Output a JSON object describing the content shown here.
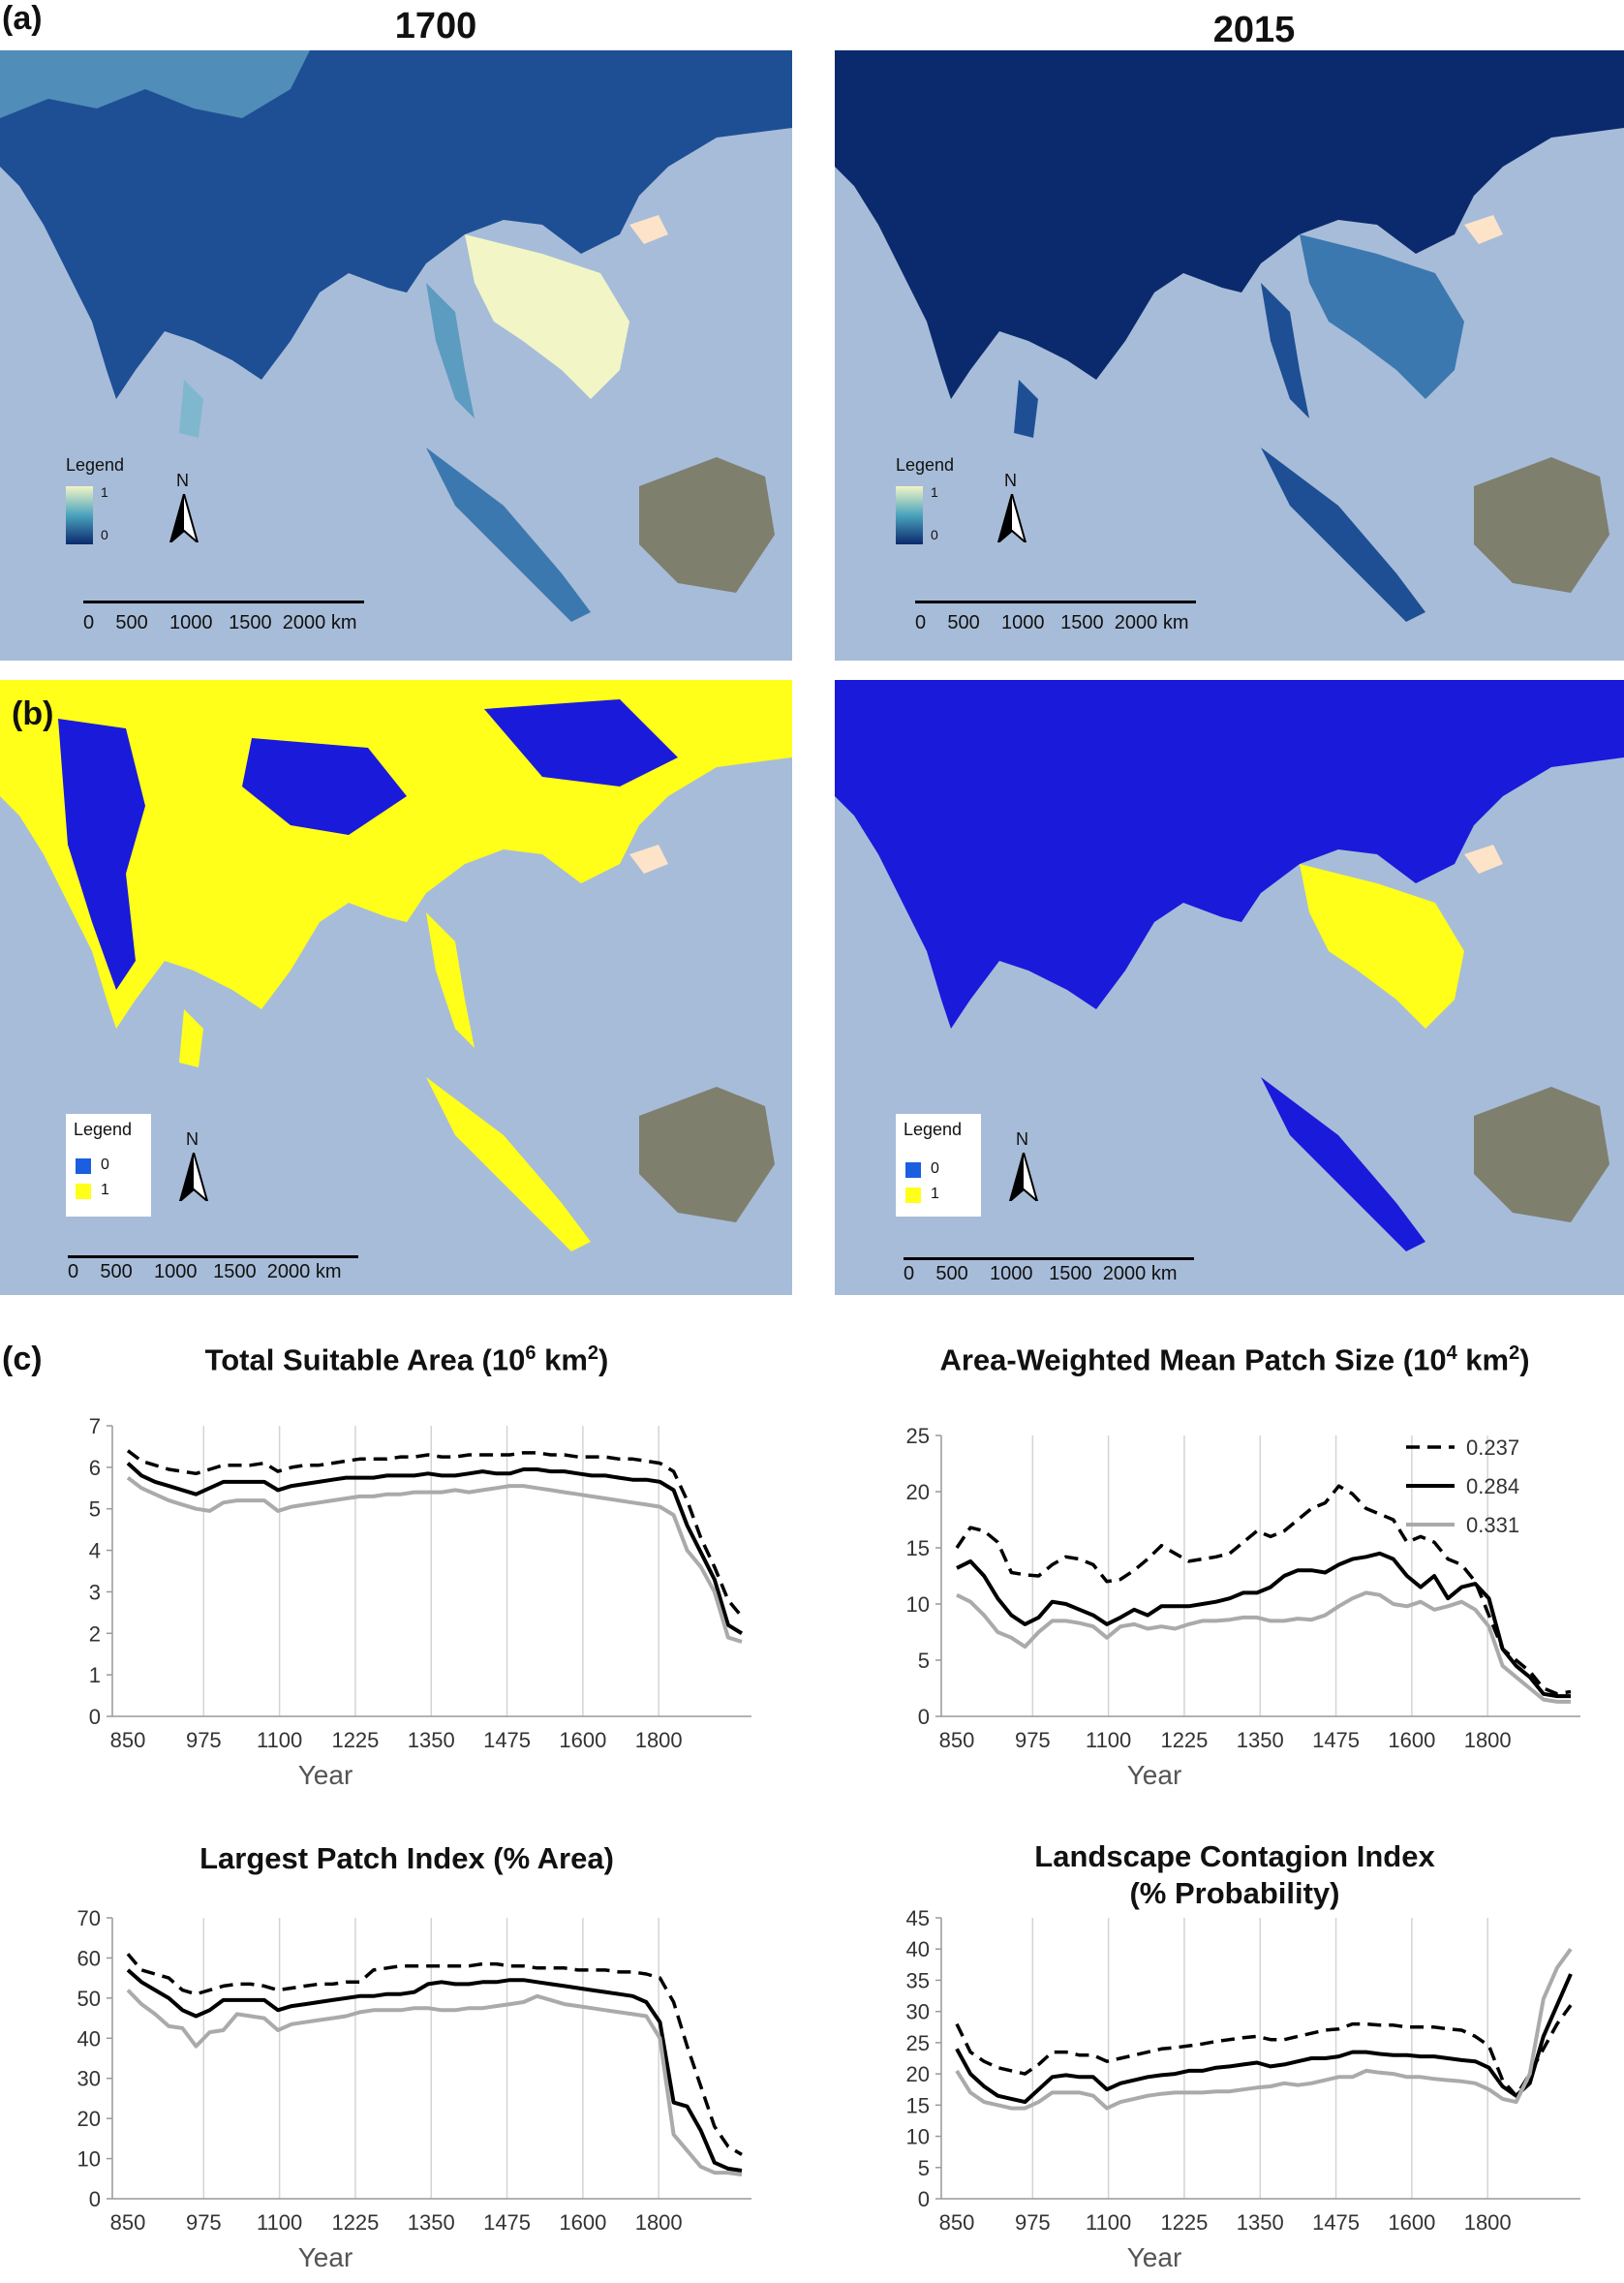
{
  "panels": {
    "a": {
      "label": "(a)"
    },
    "b": {
      "label": "(b)"
    },
    "c": {
      "label": "(c)"
    }
  },
  "maps": {
    "year_left": "1700",
    "year_right": "2015",
    "legend_title": "Legend",
    "continuous_legend": {
      "high": "1",
      "low": "0"
    },
    "binary_legend": {
      "zero": "0",
      "one": "1"
    },
    "north": "N",
    "scale_labels": [
      "0",
      "500",
      "1000",
      "1500",
      "2000 km"
    ],
    "colors": {
      "ocean": "#a7bcd8",
      "land_outside": "#fde3c8",
      "blue_dark": "#0b2a6e",
      "blue_binary": "#1a1adb",
      "yellow": "#ffff1a",
      "highlight": "#f2f5c6",
      "borneo": "#7f7f6e"
    }
  },
  "chart_data": [
    {
      "type": "line",
      "title_main": "Total Suitable Area (10",
      "title_sup": "6",
      "title_tail": " km",
      "title_sup2": "2",
      "title_end": ")",
      "xlabel": "Year",
      "x_ticks": [
        "850",
        "975",
        "1100",
        "1225",
        "1350",
        "1475",
        "1600",
        "1800"
      ],
      "y_ticks": [
        "0",
        "1",
        "2",
        "3",
        "4",
        "5",
        "6",
        "7"
      ],
      "ylim": [
        0,
        7
      ],
      "series": [
        {
          "style": "dashed",
          "values": [
            6.4,
            6.15,
            6.05,
            5.95,
            5.9,
            5.85,
            5.95,
            6.05,
            6.05,
            6.05,
            6.1,
            5.9,
            6.0,
            6.05,
            6.05,
            6.1,
            6.15,
            6.2,
            6.2,
            6.2,
            6.25,
            6.25,
            6.3,
            6.25,
            6.25,
            6.3,
            6.3,
            6.3,
            6.3,
            6.35,
            6.35,
            6.3,
            6.3,
            6.25,
            6.25,
            6.25,
            6.2,
            6.2,
            6.15,
            6.1,
            5.9,
            5.2,
            4.3,
            3.6,
            2.8,
            2.4
          ]
        },
        {
          "style": "solid",
          "values": [
            6.1,
            5.8,
            5.65,
            5.55,
            5.45,
            5.35,
            5.5,
            5.65,
            5.65,
            5.65,
            5.65,
            5.45,
            5.55,
            5.6,
            5.65,
            5.7,
            5.75,
            5.75,
            5.75,
            5.8,
            5.8,
            5.8,
            5.85,
            5.8,
            5.8,
            5.85,
            5.9,
            5.85,
            5.85,
            5.95,
            5.95,
            5.9,
            5.9,
            5.85,
            5.8,
            5.8,
            5.75,
            5.7,
            5.7,
            5.65,
            5.45,
            4.6,
            3.95,
            3.3,
            2.2,
            2.0
          ]
        },
        {
          "style": "gray",
          "values": [
            5.75,
            5.5,
            5.35,
            5.2,
            5.1,
            5.0,
            4.95,
            5.15,
            5.2,
            5.2,
            5.2,
            4.95,
            5.05,
            5.1,
            5.15,
            5.2,
            5.25,
            5.3,
            5.3,
            5.35,
            5.35,
            5.4,
            5.4,
            5.4,
            5.45,
            5.4,
            5.45,
            5.5,
            5.55,
            5.55,
            5.5,
            5.45,
            5.4,
            5.35,
            5.3,
            5.25,
            5.2,
            5.15,
            5.1,
            5.05,
            4.85,
            4.0,
            3.6,
            3.0,
            1.9,
            1.8
          ]
        }
      ]
    },
    {
      "type": "line",
      "title_main": "Area-Weighted Mean Patch Size (10",
      "title_sup": "4",
      "title_tail": " km",
      "title_sup2": "2",
      "title_end": ")",
      "xlabel": "Year",
      "x_ticks": [
        "850",
        "975",
        "1100",
        "1225",
        "1350",
        "1475",
        "1600",
        "1800"
      ],
      "y_ticks": [
        "0",
        "5",
        "10",
        "15",
        "20",
        "25"
      ],
      "ylim": [
        0,
        25
      ],
      "legend": [
        "0.237",
        "0.284",
        "0.331"
      ],
      "series": [
        {
          "style": "dashed",
          "values": [
            15,
            16.8,
            16.5,
            15.5,
            12.8,
            12.6,
            12.5,
            13.5,
            14.2,
            14.0,
            13.5,
            12.0,
            12.2,
            13.0,
            14.0,
            15.2,
            14.5,
            13.8,
            14.0,
            14.2,
            14.5,
            15.5,
            16.5,
            16.0,
            16.5,
            17.5,
            18.5,
            19.0,
            20.5,
            19.8,
            18.5,
            18.0,
            17.5,
            15.5,
            16.0,
            15.5,
            14.0,
            13.5,
            12.0,
            9.0,
            6.0,
            5.0,
            4.0,
            2.5,
            2.0,
            2.2
          ]
        },
        {
          "style": "solid",
          "values": [
            13.2,
            13.8,
            12.5,
            10.5,
            9.0,
            8.2,
            8.8,
            10.2,
            10.0,
            9.5,
            9.0,
            8.2,
            8.8,
            9.5,
            9.0,
            9.8,
            9.8,
            9.8,
            10.0,
            10.2,
            10.5,
            11.0,
            11.0,
            11.5,
            12.5,
            13.0,
            13.0,
            12.8,
            13.5,
            14.0,
            14.2,
            14.5,
            14.0,
            12.5,
            11.5,
            12.5,
            10.5,
            11.5,
            11.8,
            10.5,
            6.0,
            4.5,
            3.5,
            2.0,
            1.8,
            1.8
          ]
        },
        {
          "style": "gray",
          "values": [
            10.8,
            10.2,
            9.0,
            7.5,
            7.0,
            6.2,
            7.5,
            8.5,
            8.5,
            8.3,
            8.0,
            7.0,
            8.0,
            8.2,
            7.8,
            8.0,
            7.8,
            8.2,
            8.5,
            8.5,
            8.6,
            8.8,
            8.8,
            8.5,
            8.5,
            8.7,
            8.6,
            9.0,
            9.8,
            10.5,
            11.0,
            10.8,
            10.0,
            9.8,
            10.2,
            9.5,
            9.8,
            10.2,
            9.5,
            8.0,
            4.5,
            3.5,
            2.5,
            1.5,
            1.3,
            1.3
          ]
        }
      ]
    },
    {
      "type": "line",
      "title_main": "Largest Patch Index (% Area)",
      "xlabel": "Year",
      "x_ticks": [
        "850",
        "975",
        "1100",
        "1225",
        "1350",
        "1475",
        "1600",
        "1800"
      ],
      "y_ticks": [
        "0",
        "10",
        "20",
        "30",
        "40",
        "50",
        "60",
        "70"
      ],
      "ylim": [
        0,
        70
      ],
      "series": [
        {
          "style": "dashed",
          "values": [
            61,
            57,
            56,
            55,
            52,
            51,
            52,
            53,
            53.5,
            53.5,
            53,
            52,
            52.5,
            53,
            53.5,
            53.5,
            54,
            54,
            57,
            57.5,
            58,
            58,
            58,
            58,
            58,
            58,
            58.5,
            58.5,
            58,
            58,
            57.5,
            57.5,
            57.5,
            57,
            57,
            57,
            56.5,
            56.5,
            56,
            55,
            49,
            38,
            28,
            18,
            13,
            11
          ]
        },
        {
          "style": "solid",
          "values": [
            57,
            54,
            52,
            50,
            47,
            45.5,
            47,
            49.5,
            49.5,
            49.5,
            49.5,
            47,
            48,
            48.5,
            49,
            49.5,
            50,
            50.5,
            50.5,
            51,
            51,
            51.5,
            53.5,
            54,
            53.5,
            53.5,
            54,
            54,
            54.5,
            54.5,
            54,
            53.5,
            53,
            52.5,
            52,
            51.5,
            51,
            50.5,
            49,
            44,
            24,
            23,
            17,
            9,
            7.5,
            7
          ]
        },
        {
          "style": "gray",
          "values": [
            52,
            48.5,
            46,
            43,
            42.5,
            38,
            41.5,
            42,
            46,
            45.5,
            45,
            42,
            43.5,
            44,
            44.5,
            45,
            45.5,
            46.5,
            47,
            47,
            47,
            47.5,
            47.5,
            47,
            47,
            47.5,
            47.5,
            48,
            48.5,
            49,
            50.5,
            49.5,
            48.5,
            48,
            47.5,
            47,
            46.5,
            46,
            45.5,
            40,
            16,
            12,
            8,
            6.5,
            6.5,
            6
          ]
        }
      ]
    },
    {
      "type": "line",
      "title_main": "Landscape Contagion Index",
      "title_line2": "(% Probability)",
      "xlabel": "Year",
      "x_ticks": [
        "850",
        "975",
        "1100",
        "1225",
        "1350",
        "1475",
        "1600",
        "1800"
      ],
      "y_ticks": [
        "0",
        "5",
        "10",
        "15",
        "20",
        "25",
        "30",
        "35",
        "40",
        "45"
      ],
      "ylim": [
        0,
        45
      ],
      "series": [
        {
          "style": "dashed",
          "values": [
            28,
            23.5,
            22,
            21,
            20.5,
            20,
            21.5,
            23.5,
            23.5,
            23,
            23,
            22,
            22.5,
            23,
            23.5,
            24,
            24.2,
            24.5,
            24.8,
            25.2,
            25.5,
            25.8,
            26,
            25.5,
            25.5,
            26,
            26.5,
            27,
            27.2,
            28,
            28,
            27.8,
            27.8,
            27.5,
            27.5,
            27.5,
            27.2,
            27,
            26,
            24.5,
            19,
            16.5,
            20,
            24,
            28,
            31
          ]
        },
        {
          "style": "solid",
          "values": [
            24,
            20,
            18,
            16.5,
            16,
            15.5,
            17.5,
            19.5,
            19.8,
            19.5,
            19.5,
            17.5,
            18.5,
            19,
            19.5,
            19.8,
            20,
            20.5,
            20.5,
            21,
            21.2,
            21.5,
            21.8,
            21.2,
            21.5,
            22,
            22.5,
            22.5,
            22.8,
            23.5,
            23.5,
            23.2,
            23,
            23,
            22.8,
            22.8,
            22.5,
            22.2,
            22,
            21,
            18,
            16.5,
            18.5,
            26,
            31,
            36
          ]
        },
        {
          "style": "gray",
          "values": [
            20.5,
            17,
            15.5,
            15,
            14.5,
            14.5,
            15.5,
            17,
            17,
            17,
            16.5,
            14.5,
            15.5,
            16,
            16.5,
            16.8,
            17,
            17,
            17,
            17.2,
            17.2,
            17.5,
            17.8,
            18,
            18.5,
            18.2,
            18.5,
            19,
            19.5,
            19.5,
            20.5,
            20.2,
            20,
            19.5,
            19.5,
            19.2,
            19,
            18.8,
            18.5,
            17.5,
            16,
            15.5,
            20,
            32,
            37,
            40
          ]
        }
      ]
    }
  ]
}
